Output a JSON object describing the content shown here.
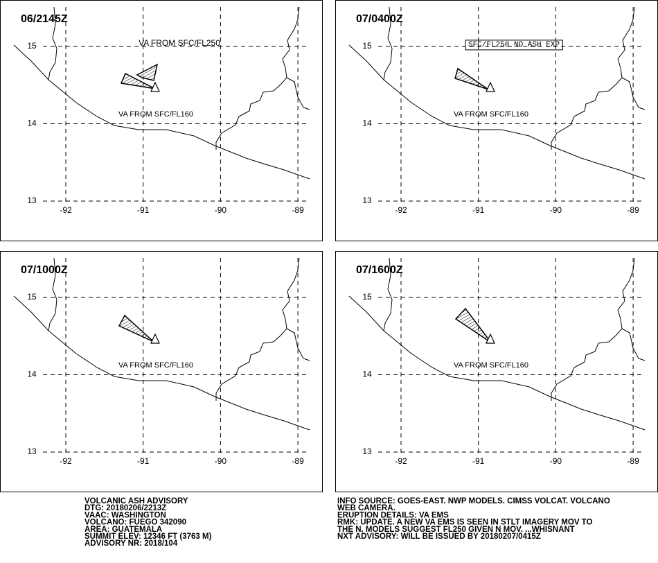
{
  "panels": [
    {
      "time": "06/2145Z",
      "upper_label": "VA FROM SFC/FL250",
      "upper_label_boxed": false,
      "lower_label": "VA FROM SFC/FL160"
    },
    {
      "time": "07/0400Z",
      "upper_label": "SFC/FL250 NO ASH EXP",
      "upper_label_boxed": true,
      "lower_label": "VA FROM SFC/FL160"
    },
    {
      "time": "07/1000Z",
      "lower_label": "VA FROM SFC/FL160"
    },
    {
      "time": "07/1600Z",
      "lower_label": "VA FROM SFC/FL160"
    }
  ],
  "lat_ticks": [
    15,
    14,
    13
  ],
  "lon_ticks": [
    -92,
    -91,
    -90,
    -89
  ],
  "advisory_left": [
    "VOLCANIC ASH ADVISORY",
    "DTG: 20180206/2213Z",
    "VAAC: WASHINGTON",
    "VOLCANO: FUEGO 342090",
    "AREA: GUATEMALA",
    "SUMMIT ELEV: 12346 FT (3763 M)",
    "ADVISORY NR: 2018/104"
  ],
  "advisory_right": [
    "INFO SOURCE: GOES-EAST. NWP MODELS. CIMSS VOLCAT. VOLCANO",
    "WEB CAMERA.",
    "ERUPTION DETAILS: VA EMS",
    "RMK: UPDATE. A NEW VA EMS IS SEEN IN STLT IMAGERY MOV TO",
    "THE N. MODELS SUGGEST FL250 GIVEN N MOV. ...WHISNANT",
    "NXT ADVISORY: WILL BE ISSUED BY 20180207/0415Z"
  ]
}
